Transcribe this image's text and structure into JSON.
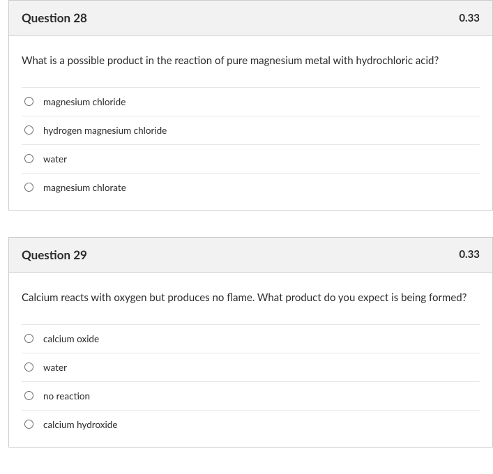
{
  "questions": [
    {
      "number": "Question 28",
      "points": "0.33",
      "prompt": "What is a possible product in the reaction of pure magnesium metal with hydrochloric acid?",
      "options": [
        "magnesium chloride",
        "hydrogen magnesium chloride",
        "water",
        "magnesium chlorate"
      ]
    },
    {
      "number": "Question 29",
      "points": "0.33",
      "prompt": "Calcium reacts with oxygen but produces no flame.  What product do you expect is being formed?",
      "options": [
        "calcium oxide",
        "water",
        "no reaction",
        "calcium hydroxide"
      ]
    }
  ],
  "colors": {
    "header_bg": "#f2f2f2",
    "border": "#cccccc",
    "text": "#2b2b2b",
    "option_border": "#e6e6e6",
    "radio_border": "#6d6d6d"
  }
}
